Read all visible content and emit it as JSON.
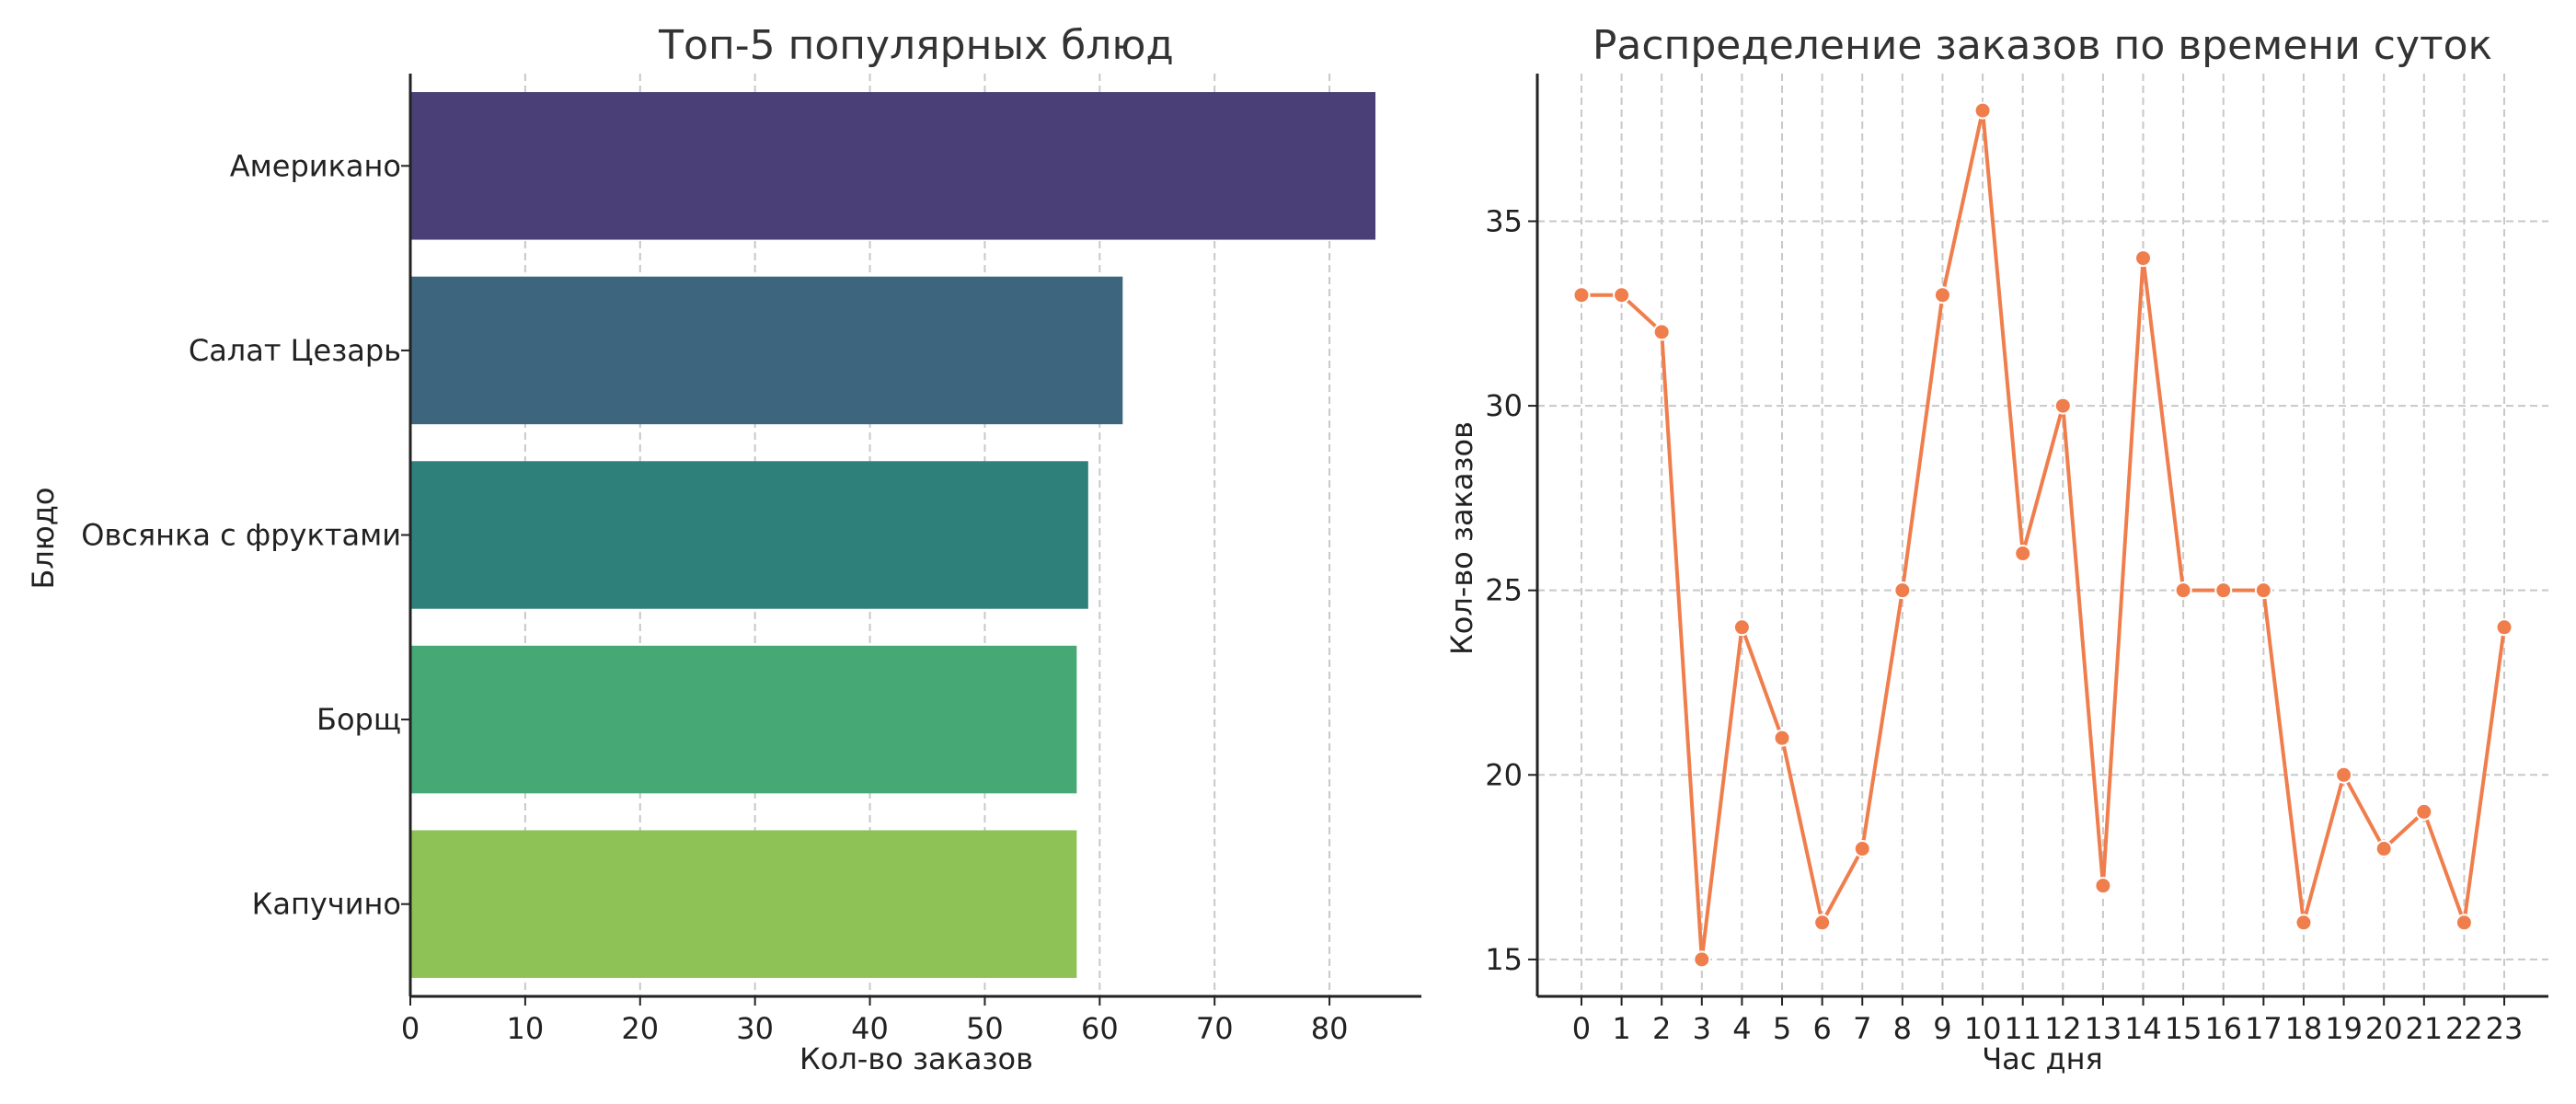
{
  "chart_data": [
    {
      "type": "bar",
      "orientation": "horizontal",
      "title": "Топ-5 популярных блюд",
      "xlabel": "Кол-во заказов",
      "ylabel": "Блюдо",
      "categories": [
        "Американо",
        "Салат Цезарь",
        "Овсянка с фруктами",
        "Борщ",
        "Капучино"
      ],
      "values": [
        84,
        62,
        59,
        58,
        58
      ],
      "colors": [
        "#4a3f76",
        "#3d657e",
        "#2e817a",
        "#46a874",
        "#8fc256"
      ],
      "xlim": [
        0,
        88
      ],
      "xticks": [
        0,
        10,
        20,
        30,
        40,
        50,
        60,
        70,
        80
      ],
      "grid": true
    },
    {
      "type": "line",
      "title": "Распределение заказов по времени суток",
      "xlabel": "Час дня",
      "ylabel": "Кол-во заказов",
      "x": [
        0,
        1,
        2,
        3,
        4,
        5,
        6,
        7,
        8,
        9,
        10,
        11,
        12,
        13,
        14,
        15,
        16,
        17,
        18,
        19,
        20,
        21,
        22,
        23
      ],
      "values": [
        33,
        33,
        32,
        15,
        24,
        21,
        16,
        18,
        25,
        33,
        38,
        26,
        30,
        17,
        34,
        25,
        25,
        25,
        16,
        20,
        18,
        19,
        16,
        24
      ],
      "color": "#f07e4d",
      "ylim": [
        14.0,
        39.0
      ],
      "yticks": [
        15,
        20,
        25,
        30,
        35
      ],
      "grid": true,
      "marker": "circle"
    }
  ]
}
